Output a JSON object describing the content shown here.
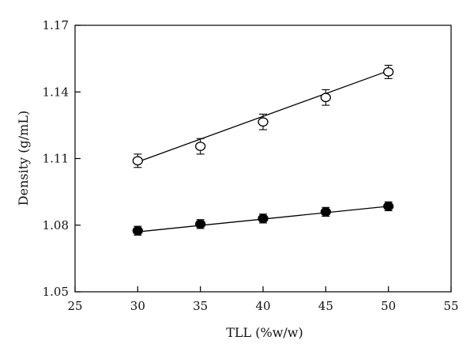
{
  "chart_data": {
    "type": "scatter",
    "title": "",
    "xlabel": "TLL (%w/w)",
    "ylabel": "Density (g/mL)",
    "xlim": [
      25,
      55
    ],
    "ylim": [
      1.05,
      1.17
    ],
    "xticks": [
      25,
      30,
      35,
      40,
      45,
      50,
      55
    ],
    "xtick_labels": [
      "25",
      "30",
      "35",
      "40",
      "45",
      "50",
      "55"
    ],
    "yticks": [
      1.05,
      1.08,
      1.11,
      1.14,
      1.17
    ],
    "ytick_labels": [
      "1.05",
      "1.08",
      "1.11",
      "1.14",
      "1.17"
    ],
    "grid": false,
    "legend": "none",
    "series": [
      {
        "marker": "open-circle",
        "line": "linear-fit",
        "fit_line": [
          1.1085,
          1.1495
        ],
        "x": [
          30,
          35,
          40,
          45,
          50
        ],
        "y": [
          1.109,
          1.1155,
          1.1265,
          1.1375,
          1.149
        ],
        "error": [
          0.003,
          0.0035,
          0.0035,
          0.0035,
          0.003
        ]
      },
      {
        "marker": "filled-circle",
        "line": "linear-fit",
        "fit_line": [
          1.077,
          1.0885
        ],
        "x": [
          30,
          35,
          40,
          45,
          50
        ],
        "y": [
          1.0775,
          1.0805,
          1.083,
          1.086,
          1.0885
        ],
        "error": [
          0.002,
          0.002,
          0.002,
          0.002,
          0.002
        ]
      }
    ],
    "colors": {
      "axis": "#000000",
      "marker_fill_open": "#ffffff",
      "marker_fill_closed": "#000000"
    }
  }
}
